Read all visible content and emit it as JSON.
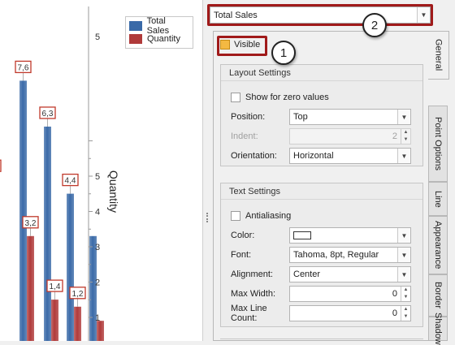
{
  "chart": {
    "legend": [
      {
        "label": "Total Sales",
        "color": "#3a6aa8"
      },
      {
        "label": "Quantity",
        "color": "#b03a3a"
      }
    ],
    "axis_title": "Quantity",
    "axis_ticks": [
      "1",
      "2",
      "3",
      "4",
      "5"
    ]
  },
  "chart_data": {
    "type": "bar",
    "categories": [
      "1",
      "2",
      "3",
      "4",
      "5"
    ],
    "series": [
      {
        "name": "Total Sales",
        "values": [
          6.3,
          7.6,
          6.3,
          4.4,
          3.2
        ]
      },
      {
        "name": "Quantity",
        "values": [
          4.8,
          3.2,
          1.4,
          1.2,
          0.8
        ]
      }
    ],
    "point_labels": [
      {
        "series": 1,
        "text": "4,8",
        "value": 4.8,
        "col": 0
      },
      {
        "series": 0,
        "text": "6,3",
        "value": 6.3,
        "col": 0
      },
      {
        "series": 0,
        "text": "7,6",
        "value": 7.6,
        "col": 1
      },
      {
        "series": 1,
        "text": "3,2",
        "value": 3.2,
        "col": 1
      },
      {
        "series": 0,
        "text": "6,3",
        "value": 6.3,
        "col": 2
      },
      {
        "series": 1,
        "text": "1,4",
        "value": 1.4,
        "col": 2
      },
      {
        "series": 0,
        "text": "4,4",
        "value": 4.4,
        "col": 3
      },
      {
        "series": 1,
        "text": "1,2",
        "value": 1.2,
        "col": 3
      }
    ],
    "ylabel": "Quantity",
    "secondary_ylim": [
      0,
      5.5
    ],
    "legend_position": "top-right"
  },
  "series_selector": {
    "value": "Total Sales"
  },
  "visible": {
    "label": "Visible",
    "checked": true
  },
  "layout_settings": {
    "title": "Layout Settings",
    "show_zero_label": "Show for zero values",
    "position_label": "Position:",
    "position_value": "Top",
    "indent_label": "Indent:",
    "indent_value": "2",
    "orientation_label": "Orientation:",
    "orientation_value": "Horizontal"
  },
  "text_settings": {
    "title": "Text Settings",
    "antialiasing_label": "Antialiasing",
    "color_label": "Color:",
    "font_label": "Font:",
    "font_value": "Tahoma, 8pt, Regular",
    "alignment_label": "Alignment:",
    "alignment_value": "Center",
    "max_width_label": "Max Width:",
    "max_width_value": "0",
    "max_line_count_label": "Max Line Count:",
    "max_line_count_value": "0"
  },
  "tabs": [
    "General",
    "Point Options",
    "Line",
    "Appearance",
    "Border",
    "Shadow"
  ],
  "callouts": {
    "one": "1",
    "two": "2"
  }
}
